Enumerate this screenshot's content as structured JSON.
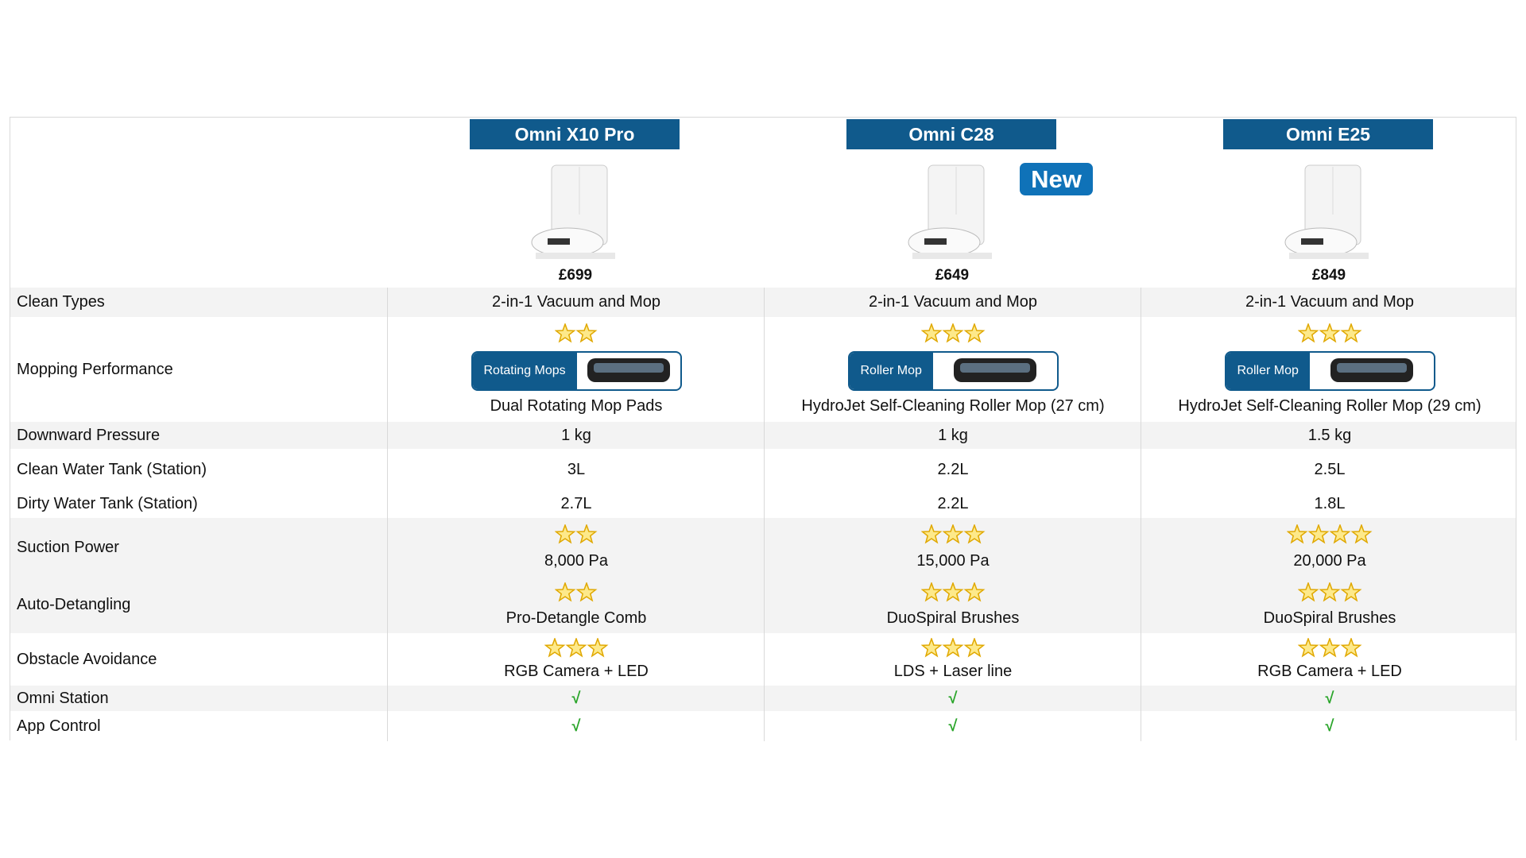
{
  "products": [
    {
      "name": "Omni X10 Pro",
      "price": "£699"
    },
    {
      "name": "Omni C28",
      "price": "£649",
      "badge": "New"
    },
    {
      "name": "Omni E25",
      "price": "£849"
    }
  ],
  "rows": [
    {
      "label": "Clean Types",
      "cells": [
        {
          "text": "2-in-1 Vacuum and Mop"
        },
        {
          "text": "2-in-1 Vacuum and Mop"
        },
        {
          "text": "2-in-1 Vacuum and Mop"
        }
      ]
    },
    {
      "label": "Mopping Performance",
      "cells": [
        {
          "stars": 2,
          "tag": "Rotating Mops",
          "text": "Dual Rotating Mop Pads"
        },
        {
          "stars": 3,
          "tag": "Roller Mop",
          "text": "HydroJet Self-Cleaning Roller Mop (27 cm)"
        },
        {
          "stars": 3,
          "tag": "Roller Mop",
          "text": "HydroJet Self-Cleaning Roller Mop (29 cm)"
        }
      ]
    },
    {
      "label": "Downward Pressure",
      "cells": [
        {
          "text": "1 kg"
        },
        {
          "text": "1 kg"
        },
        {
          "text": "1.5 kg"
        }
      ]
    },
    {
      "label": "Clean Water Tank (Station)",
      "cells": [
        {
          "text": "3L"
        },
        {
          "text": "2.2L"
        },
        {
          "text": "2.5L"
        }
      ]
    },
    {
      "label": "Dirty Water Tank (Station)",
      "cells": [
        {
          "text": "2.7L"
        },
        {
          "text": "2.2L"
        },
        {
          "text": "1.8L"
        }
      ]
    },
    {
      "label": "Suction Power",
      "cells": [
        {
          "stars": 2,
          "text": "8,000 Pa"
        },
        {
          "stars": 3,
          "text": "15,000 Pa"
        },
        {
          "stars": 4,
          "text": "20,000 Pa"
        }
      ]
    },
    {
      "label": "Auto-Detangling",
      "cells": [
        {
          "stars": 2,
          "text": "Pro-Detangle Comb"
        },
        {
          "stars": 3,
          "text": "DuoSpiral Brushes"
        },
        {
          "stars": 3,
          "text": "DuoSpiral Brushes"
        }
      ]
    },
    {
      "label": "Obstacle Avoidance",
      "cells": [
        {
          "stars": 3,
          "text": "RGB Camera + LED"
        },
        {
          "stars": 3,
          "text": "LDS + Laser line"
        },
        {
          "stars": 3,
          "text": "RGB Camera + LED"
        }
      ]
    },
    {
      "label": "Omni Station",
      "cells": [
        {
          "text": "√"
        },
        {
          "text": "√"
        },
        {
          "text": "√"
        }
      ]
    },
    {
      "label": "App Control",
      "cells": [
        {
          "text": "√"
        },
        {
          "text": "√"
        },
        {
          "text": "√"
        }
      ]
    }
  ]
}
